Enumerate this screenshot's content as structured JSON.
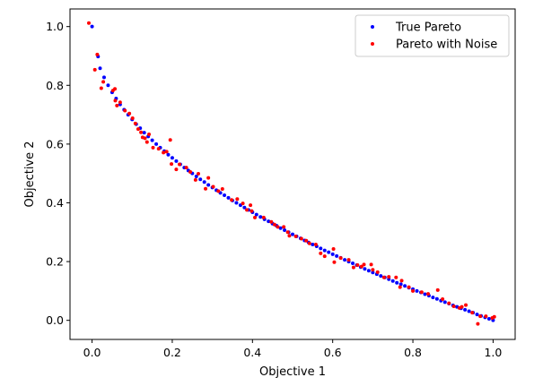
{
  "chart_data": {
    "type": "scatter",
    "xlabel": "Objective 1",
    "ylabel": "Objective 2",
    "xlim": [
      -0.055,
      1.055
    ],
    "ylim": [
      -0.065,
      1.06
    ],
    "xticks": [
      {
        "value": 0.0,
        "label": "0.0"
      },
      {
        "value": 0.2,
        "label": "0.2"
      },
      {
        "value": 0.4,
        "label": "0.4"
      },
      {
        "value": 0.6,
        "label": "0.6"
      },
      {
        "value": 0.8,
        "label": "0.8"
      },
      {
        "value": 1.0,
        "label": "1.0"
      }
    ],
    "yticks": [
      {
        "value": 0.0,
        "label": "0.0"
      },
      {
        "value": 0.2,
        "label": "0.2"
      },
      {
        "value": 0.4,
        "label": "0.4"
      },
      {
        "value": 0.6,
        "label": "0.6"
      },
      {
        "value": 0.8,
        "label": "0.8"
      },
      {
        "value": 1.0,
        "label": "1.0"
      }
    ],
    "grid": false,
    "legend_position": "upper-right",
    "series": [
      {
        "name": "True Pareto",
        "color": "#0000ff",
        "points": [
          [
            0.0,
            1.0
          ],
          [
            0.015,
            0.898
          ],
          [
            0.02,
            0.858
          ],
          [
            0.03,
            0.827
          ],
          [
            0.04,
            0.8
          ],
          [
            0.05,
            0.776
          ],
          [
            0.06,
            0.755
          ],
          [
            0.07,
            0.735
          ],
          [
            0.08,
            0.717
          ],
          [
            0.09,
            0.7
          ],
          [
            0.1,
            0.684
          ],
          [
            0.11,
            0.668
          ],
          [
            0.12,
            0.654
          ],
          [
            0.13,
            0.639
          ],
          [
            0.14,
            0.626
          ],
          [
            0.15,
            0.613
          ],
          [
            0.16,
            0.6
          ],
          [
            0.17,
            0.588
          ],
          [
            0.18,
            0.576
          ],
          [
            0.19,
            0.564
          ],
          [
            0.2,
            0.553
          ],
          [
            0.21,
            0.542
          ],
          [
            0.22,
            0.531
          ],
          [
            0.23,
            0.52
          ],
          [
            0.24,
            0.51
          ],
          [
            0.25,
            0.5
          ],
          [
            0.26,
            0.49
          ],
          [
            0.27,
            0.48
          ],
          [
            0.28,
            0.471
          ],
          [
            0.29,
            0.461
          ],
          [
            0.3,
            0.452
          ],
          [
            0.31,
            0.443
          ],
          [
            0.32,
            0.434
          ],
          [
            0.33,
            0.426
          ],
          [
            0.34,
            0.417
          ],
          [
            0.35,
            0.408
          ],
          [
            0.36,
            0.4
          ],
          [
            0.37,
            0.392
          ],
          [
            0.38,
            0.384
          ],
          [
            0.39,
            0.376
          ],
          [
            0.4,
            0.368
          ],
          [
            0.41,
            0.36
          ],
          [
            0.42,
            0.352
          ],
          [
            0.43,
            0.344
          ],
          [
            0.44,
            0.337
          ],
          [
            0.45,
            0.329
          ],
          [
            0.46,
            0.322
          ],
          [
            0.47,
            0.314
          ],
          [
            0.48,
            0.307
          ],
          [
            0.49,
            0.3
          ],
          [
            0.5,
            0.293
          ],
          [
            0.51,
            0.286
          ],
          [
            0.52,
            0.279
          ],
          [
            0.53,
            0.272
          ],
          [
            0.54,
            0.265
          ],
          [
            0.55,
            0.258
          ],
          [
            0.56,
            0.252
          ],
          [
            0.57,
            0.245
          ],
          [
            0.58,
            0.238
          ],
          [
            0.59,
            0.232
          ],
          [
            0.6,
            0.225
          ],
          [
            0.61,
            0.219
          ],
          [
            0.62,
            0.213
          ],
          [
            0.63,
            0.206
          ],
          [
            0.64,
            0.2
          ],
          [
            0.65,
            0.194
          ],
          [
            0.66,
            0.188
          ],
          [
            0.67,
            0.181
          ],
          [
            0.68,
            0.175
          ],
          [
            0.69,
            0.169
          ],
          [
            0.7,
            0.163
          ],
          [
            0.71,
            0.157
          ],
          [
            0.72,
            0.151
          ],
          [
            0.73,
            0.146
          ],
          [
            0.74,
            0.14
          ],
          [
            0.75,
            0.134
          ],
          [
            0.76,
            0.128
          ],
          [
            0.77,
            0.123
          ],
          [
            0.78,
            0.117
          ],
          [
            0.79,
            0.111
          ],
          [
            0.8,
            0.106
          ],
          [
            0.81,
            0.1
          ],
          [
            0.82,
            0.095
          ],
          [
            0.83,
            0.089
          ],
          [
            0.84,
            0.084
          ],
          [
            0.85,
            0.078
          ],
          [
            0.86,
            0.073
          ],
          [
            0.87,
            0.067
          ],
          [
            0.88,
            0.062
          ],
          [
            0.89,
            0.057
          ],
          [
            0.9,
            0.051
          ],
          [
            0.91,
            0.046
          ],
          [
            0.92,
            0.041
          ],
          [
            0.93,
            0.036
          ],
          [
            0.94,
            0.031
          ],
          [
            0.95,
            0.026
          ],
          [
            0.96,
            0.02
          ],
          [
            0.97,
            0.015
          ],
          [
            0.98,
            0.01
          ],
          [
            0.99,
            0.005
          ],
          [
            1.0,
            0.0
          ]
        ]
      },
      {
        "name": "Pareto with Noise",
        "color": "#ff0000",
        "points": [
          [
            -0.008,
            1.012
          ],
          [
            0.007,
            0.853
          ],
          [
            0.013,
            0.905
          ],
          [
            0.023,
            0.79
          ],
          [
            0.028,
            0.812
          ],
          [
            0.052,
            0.782
          ],
          [
            0.057,
            0.788
          ],
          [
            0.058,
            0.748
          ],
          [
            0.062,
            0.731
          ],
          [
            0.07,
            0.742
          ],
          [
            0.082,
            0.714
          ],
          [
            0.093,
            0.704
          ],
          [
            0.101,
            0.688
          ],
          [
            0.108,
            0.67
          ],
          [
            0.115,
            0.651
          ],
          [
            0.122,
            0.64
          ],
          [
            0.126,
            0.623
          ],
          [
            0.132,
            0.62
          ],
          [
            0.137,
            0.607
          ],
          [
            0.142,
            0.633
          ],
          [
            0.152,
            0.588
          ],
          [
            0.166,
            0.584
          ],
          [
            0.178,
            0.571
          ],
          [
            0.186,
            0.574
          ],
          [
            0.195,
            0.614
          ],
          [
            0.198,
            0.532
          ],
          [
            0.21,
            0.514
          ],
          [
            0.218,
            0.531
          ],
          [
            0.235,
            0.52
          ],
          [
            0.245,
            0.505
          ],
          [
            0.258,
            0.478
          ],
          [
            0.265,
            0.499
          ],
          [
            0.283,
            0.448
          ],
          [
            0.29,
            0.485
          ],
          [
            0.302,
            0.455
          ],
          [
            0.315,
            0.44
          ],
          [
            0.325,
            0.447
          ],
          [
            0.348,
            0.41
          ],
          [
            0.362,
            0.413
          ],
          [
            0.376,
            0.398
          ],
          [
            0.386,
            0.376
          ],
          [
            0.395,
            0.392
          ],
          [
            0.398,
            0.372
          ],
          [
            0.406,
            0.35
          ],
          [
            0.428,
            0.35
          ],
          [
            0.447,
            0.335
          ],
          [
            0.455,
            0.326
          ],
          [
            0.463,
            0.318
          ],
          [
            0.478,
            0.318
          ],
          [
            0.488,
            0.3
          ],
          [
            0.492,
            0.288
          ],
          [
            0.508,
            0.286
          ],
          [
            0.522,
            0.278
          ],
          [
            0.534,
            0.271
          ],
          [
            0.542,
            0.262
          ],
          [
            0.558,
            0.258
          ],
          [
            0.57,
            0.228
          ],
          [
            0.58,
            0.218
          ],
          [
            0.602,
            0.243
          ],
          [
            0.604,
            0.198
          ],
          [
            0.62,
            0.212
          ],
          [
            0.64,
            0.206
          ],
          [
            0.652,
            0.18
          ],
          [
            0.662,
            0.188
          ],
          [
            0.672,
            0.183
          ],
          [
            0.678,
            0.19
          ],
          [
            0.696,
            0.19
          ],
          [
            0.7,
            0.172
          ],
          [
            0.712,
            0.164
          ],
          [
            0.728,
            0.146
          ],
          [
            0.74,
            0.148
          ],
          [
            0.758,
            0.146
          ],
          [
            0.768,
            0.113
          ],
          [
            0.772,
            0.135
          ],
          [
            0.79,
            0.113
          ],
          [
            0.8,
            0.1
          ],
          [
            0.822,
            0.096
          ],
          [
            0.838,
            0.09
          ],
          [
            0.862,
            0.103
          ],
          [
            0.874,
            0.072
          ],
          [
            0.89,
            0.058
          ],
          [
            0.902,
            0.048
          ],
          [
            0.916,
            0.042
          ],
          [
            0.922,
            0.046
          ],
          [
            0.932,
            0.052
          ],
          [
            0.948,
            0.026
          ],
          [
            0.962,
            -0.012
          ],
          [
            0.968,
            0.014
          ],
          [
            0.982,
            0.014
          ],
          [
            0.998,
            0.008
          ],
          [
            1.003,
            0.012
          ]
        ]
      }
    ]
  }
}
